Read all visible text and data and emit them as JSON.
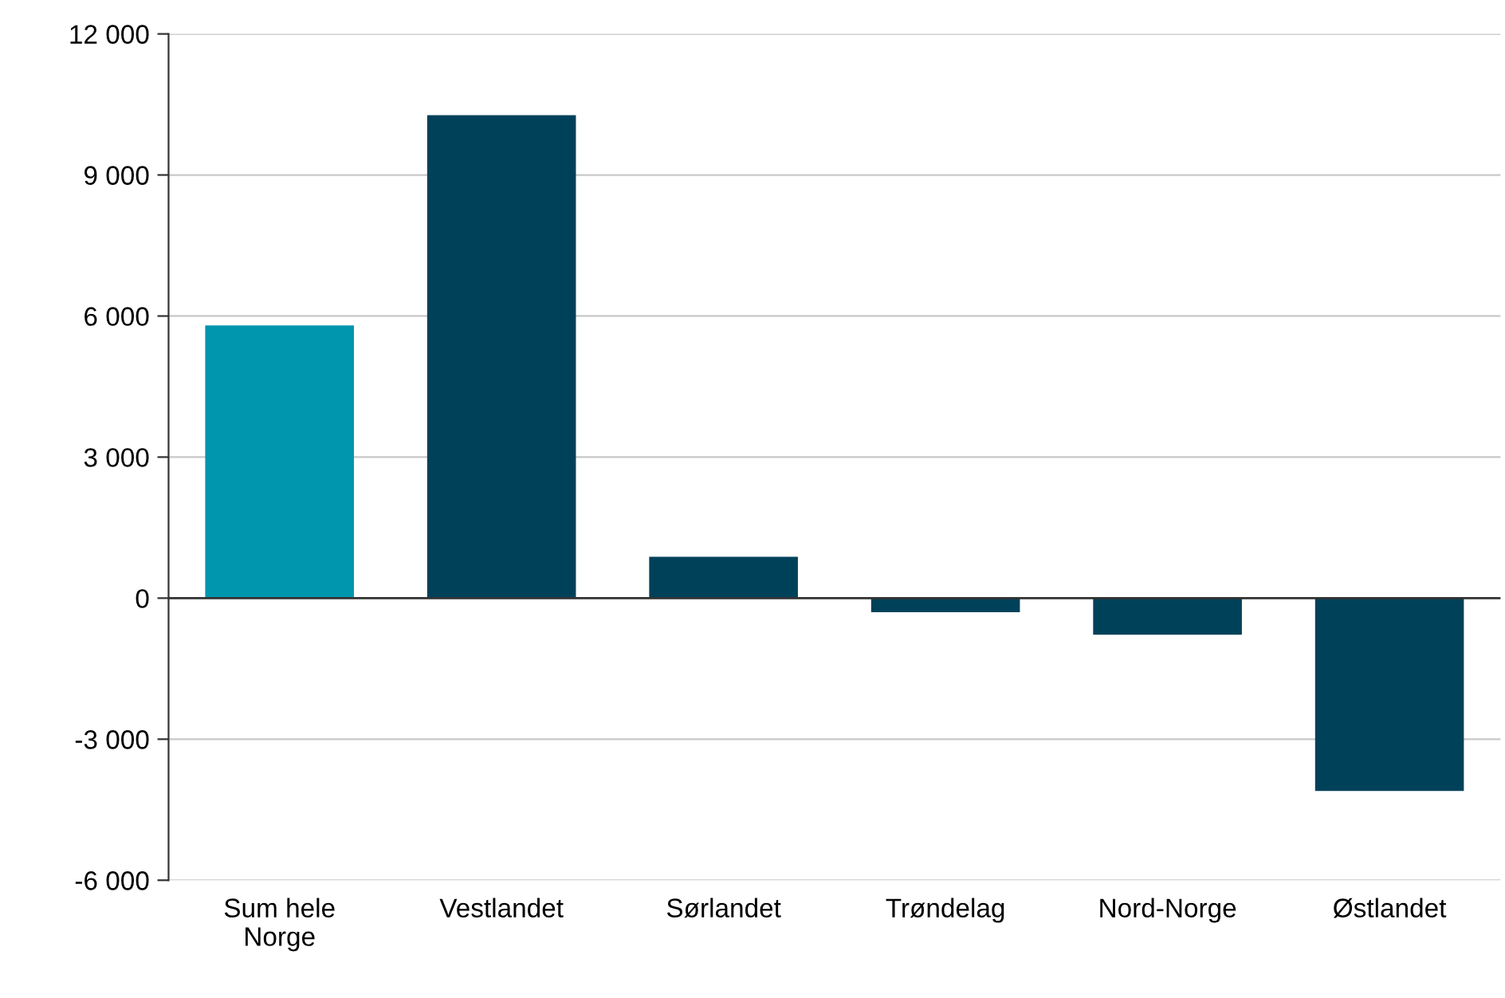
{
  "chart_data": {
    "type": "bar",
    "categories": [
      "Sum hele\nNorge",
      "Vestlandet",
      "Sørlandet",
      "Trøndelag",
      "Nord-Norge",
      "Østlandet"
    ],
    "values": [
      5800,
      10270,
      880,
      -300,
      -780,
      -4100
    ],
    "colors": [
      "#0096ae",
      "#00415a",
      "#00415a",
      "#00415a",
      "#00415a",
      "#00415a"
    ],
    "ylim": [
      -6000,
      12000
    ],
    "yticks": [
      {
        "value": -6000,
        "label": "-6 000"
      },
      {
        "value": -3000,
        "label": "-3 000"
      },
      0,
      {
        "value": 3000,
        "label": "3 000"
      },
      {
        "value": 6000,
        "label": "6 000"
      },
      {
        "value": 9000,
        "label": "9 000"
      },
      {
        "value": 12000,
        "label": "12 000"
      }
    ],
    "grid": "y",
    "legend": false,
    "ref_lines": [
      {
        "axis": "y",
        "value": 0,
        "color": "#333333"
      }
    ]
  }
}
